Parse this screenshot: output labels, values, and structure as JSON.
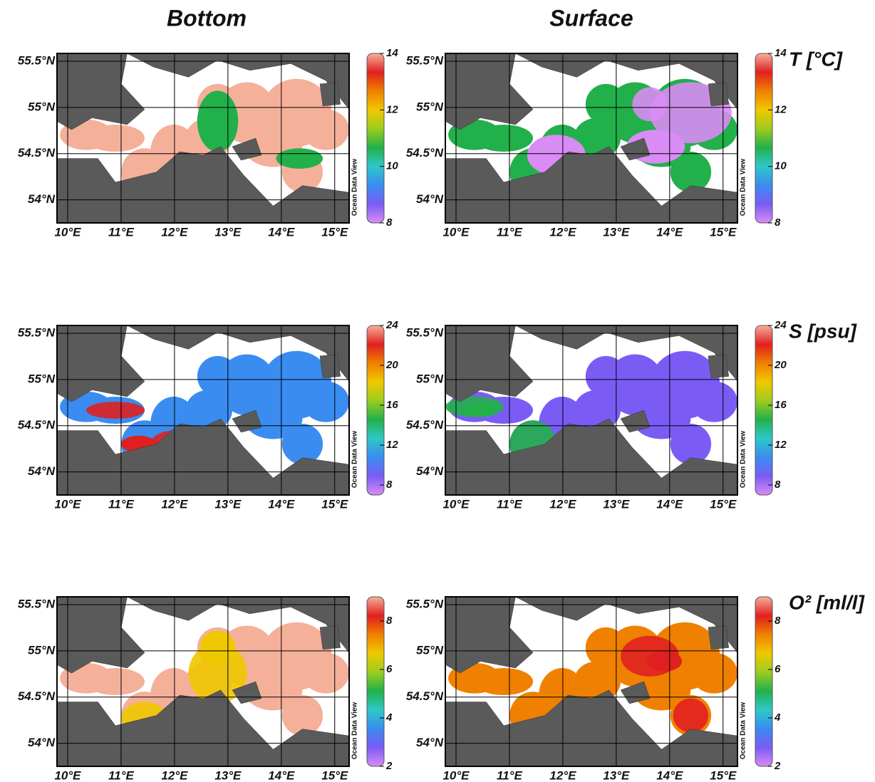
{
  "columns": [
    "Bottom",
    "Surface"
  ],
  "watermark": "Ocean Data View",
  "map": {
    "xlim": [
      9.8,
      15.27
    ],
    "ylim": [
      53.75,
      55.585
    ],
    "xticks": [
      {
        "value": 10,
        "label": "10°E"
      },
      {
        "value": 11,
        "label": "11°E"
      },
      {
        "value": 12,
        "label": "12°E"
      },
      {
        "value": 13,
        "label": "13°E"
      },
      {
        "value": 14,
        "label": "14°E"
      },
      {
        "value": 15,
        "label": "15°E"
      }
    ],
    "yticks": [
      {
        "value": 55.5,
        "label": "55.5°N"
      },
      {
        "value": 55,
        "label": "55°N"
      },
      {
        "value": 54.5,
        "label": "54.5°N"
      },
      {
        "value": 54,
        "label": "54°N"
      }
    ]
  },
  "colormap": [
    "#d98cf5",
    "#7a5cf5",
    "#3a8cf0",
    "#2ec8c8",
    "#22b04a",
    "#9ccc20",
    "#f0c800",
    "#f08000",
    "#e02020",
    "#f5b09a"
  ],
  "rows": [
    {
      "label": "T [°C]",
      "clim": [
        8,
        14
      ],
      "ticks": [
        14,
        12,
        10,
        8
      ]
    },
    {
      "label": "S [psu]",
      "clim": [
        7,
        24
      ],
      "ticks": [
        24,
        20,
        16,
        12,
        8
      ]
    },
    {
      "label": "O² [ml/l]",
      "clim": [
        2,
        9
      ],
      "ticks": [
        8,
        6,
        4,
        2
      ]
    }
  ]
}
